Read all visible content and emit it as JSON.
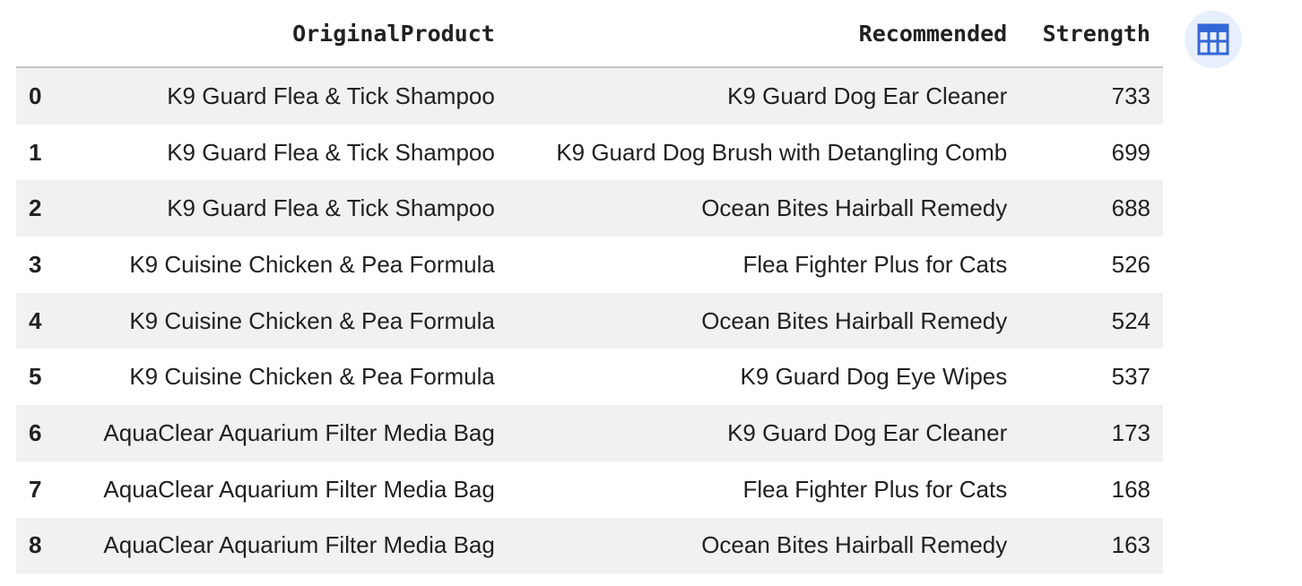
{
  "table": {
    "columns": [
      "",
      "OriginalProduct",
      "Recommended",
      "Strength"
    ],
    "rows": [
      {
        "index": "0",
        "original": "K9 Guard Flea & Tick Shampoo",
        "recommended": "K9 Guard Dog Ear Cleaner",
        "strength": "733"
      },
      {
        "index": "1",
        "original": "K9 Guard Flea & Tick Shampoo",
        "recommended": "K9 Guard Dog Brush with Detangling Comb",
        "strength": "699"
      },
      {
        "index": "2",
        "original": "K9 Guard Flea & Tick Shampoo",
        "recommended": "Ocean Bites Hairball Remedy",
        "strength": "688"
      },
      {
        "index": "3",
        "original": "K9 Cuisine Chicken & Pea Formula",
        "recommended": "Flea Fighter Plus for Cats",
        "strength": "526"
      },
      {
        "index": "4",
        "original": "K9 Cuisine Chicken & Pea Formula",
        "recommended": "Ocean Bites Hairball Remedy",
        "strength": "524"
      },
      {
        "index": "5",
        "original": "K9 Cuisine Chicken & Pea Formula",
        "recommended": "K9 Guard Dog Eye Wipes",
        "strength": "537"
      },
      {
        "index": "6",
        "original": "AquaClear Aquarium Filter Media Bag",
        "recommended": "K9 Guard Dog Ear Cleaner",
        "strength": "173"
      },
      {
        "index": "7",
        "original": "AquaClear Aquarium Filter Media Bag",
        "recommended": "Flea Fighter Plus for Cats",
        "strength": "168"
      },
      {
        "index": "8",
        "original": "AquaClear Aquarium Filter Media Bag",
        "recommended": "Ocean Bites Hairball Remedy",
        "strength": "163"
      }
    ]
  },
  "interactive_table_button": {
    "icon": "table-icon",
    "color": "#3367d6"
  }
}
